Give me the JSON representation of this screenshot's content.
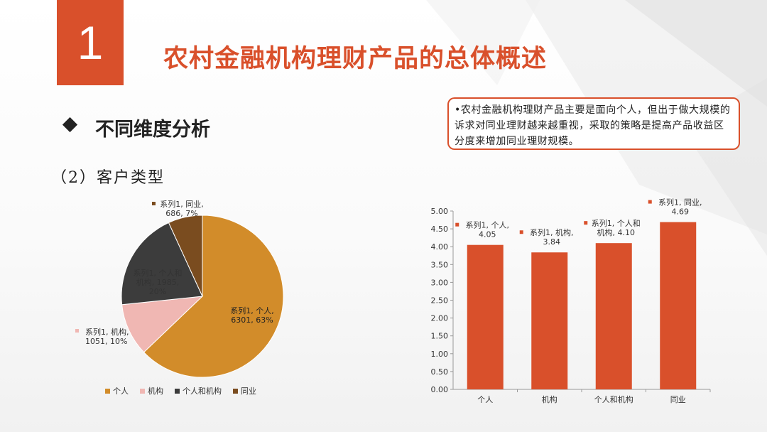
{
  "header": {
    "number": "1",
    "title": "农村金融机构理财产品的总体概述"
  },
  "section": {
    "title": "不同维度分析",
    "subtitle": "（2）客户类型"
  },
  "note": "•农村金融机构理财产品主要是面向个人，但出于做大规模的诉求对同业理财越来越重视，采取的策略是提高产品收益区分度来增加同业理财规模。",
  "colors": {
    "accent": "#d9502b",
    "pie": [
      "#d28c2a",
      "#f0b7b3",
      "#3c3c3c",
      "#7a4c1f"
    ],
    "bar": "#d9502b"
  },
  "chart_data": [
    {
      "type": "pie",
      "series_name": "系列1",
      "categories": [
        "个人",
        "机构",
        "个人和机构",
        "同业"
      ],
      "values": [
        6301,
        1051,
        1985,
        686
      ],
      "percents": [
        "63%",
        "10%",
        "20%",
        "7%"
      ],
      "labels": [
        [
          "系列1, 个人,",
          "6301, 63%"
        ],
        [
          "系列1, 机构,",
          "1051, 10%"
        ],
        [
          "系列1, 个人和",
          "机构, 1985,",
          "20%"
        ],
        [
          "系列1, 同业,",
          "686, 7%"
        ]
      ],
      "legend": [
        "个人",
        "机构",
        "个人和机构",
        "同业"
      ],
      "legend_position": "bottom"
    },
    {
      "type": "bar",
      "series_name": "系列1",
      "categories": [
        "个人",
        "机构",
        "个人和机构",
        "同业"
      ],
      "values": [
        4.05,
        3.84,
        4.1,
        4.69
      ],
      "labels": [
        [
          "系列1, 个人,",
          "4.05"
        ],
        [
          "系列1, 机构,",
          "3.84"
        ],
        [
          "系列1, 个人和",
          "机构, 4.10"
        ],
        [
          "系列1, 同业,",
          "4.69"
        ]
      ],
      "yticks": [
        "0.00",
        "0.50",
        "1.00",
        "1.50",
        "2.00",
        "2.50",
        "3.00",
        "3.50",
        "4.00",
        "4.50",
        "5.00"
      ],
      "ylim": [
        0,
        5
      ],
      "grid": false
    }
  ]
}
